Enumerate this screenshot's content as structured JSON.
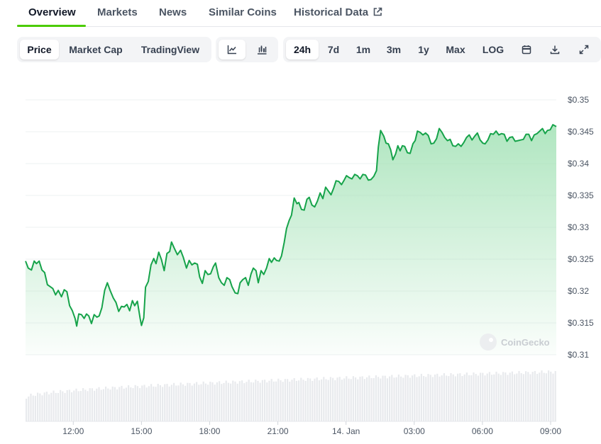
{
  "tabs": [
    {
      "label": "Overview",
      "active": true
    },
    {
      "label": "Markets"
    },
    {
      "label": "News"
    },
    {
      "label": "Similar Coins"
    },
    {
      "label": "Historical Data",
      "external": true
    }
  ],
  "chart_type_tabs": [
    {
      "label": "Price",
      "active": true
    },
    {
      "label": "Market Cap"
    },
    {
      "label": "TradingView"
    }
  ],
  "view_icons": [
    {
      "icon": "line-chart-icon",
      "active": true
    },
    {
      "icon": "candlestick-chart-icon"
    }
  ],
  "ranges": [
    {
      "label": "24h",
      "active": true
    },
    {
      "label": "7d"
    },
    {
      "label": "1m"
    },
    {
      "label": "3m"
    },
    {
      "label": "1y"
    },
    {
      "label": "Max"
    },
    {
      "label": "LOG"
    }
  ],
  "range_icons": [
    "calendar-icon",
    "download-icon",
    "fullscreen-icon"
  ],
  "watermark": "CoinGecko",
  "colors": {
    "line": "#16a34a",
    "fill_top": "#a7e3b9",
    "accent": "#4bcc00",
    "volume": "#e5e7eb"
  },
  "chart_data": {
    "type": "area",
    "title": "",
    "xlabel": "",
    "ylabel": "",
    "ylim": [
      0.31,
      0.35
    ],
    "yticks": [
      0.35,
      0.345,
      0.34,
      0.335,
      0.33,
      0.325,
      0.32,
      0.315,
      0.31
    ],
    "ytick_labels": [
      "$0.35",
      "$0.345",
      "$0.34",
      "$0.335",
      "$0.33",
      "$0.325",
      "$0.32",
      "$0.315",
      "$0.31"
    ],
    "xlim": [
      9.9,
      33.25
    ],
    "xticks": [
      12,
      15,
      18,
      21,
      24,
      27,
      30,
      33
    ],
    "xtick_labels": [
      "12:00",
      "15:00",
      "18:00",
      "21:00",
      "14. Jan",
      "03:00",
      "06:00",
      "09:00"
    ],
    "grid": true,
    "series": [
      {
        "values": [
          [
            9.9,
            0.3247
          ],
          [
            10.02,
            0.3236
          ],
          [
            10.16,
            0.3233
          ],
          [
            10.28,
            0.3247
          ],
          [
            10.38,
            0.3243
          ],
          [
            10.5,
            0.3247
          ],
          [
            10.62,
            0.3233
          ],
          [
            10.74,
            0.3229
          ],
          [
            10.86,
            0.321
          ],
          [
            10.98,
            0.3207
          ],
          [
            11.1,
            0.3204
          ],
          [
            11.22,
            0.3194
          ],
          [
            11.34,
            0.3201
          ],
          [
            11.48,
            0.3191
          ],
          [
            11.6,
            0.3202
          ],
          [
            11.72,
            0.3199
          ],
          [
            11.84,
            0.3177
          ],
          [
            11.96,
            0.3169
          ],
          [
            12.08,
            0.3157
          ],
          [
            12.15,
            0.3145
          ],
          [
            12.24,
            0.3164
          ],
          [
            12.36,
            0.3163
          ],
          [
            12.48,
            0.3157
          ],
          [
            12.58,
            0.3164
          ],
          [
            12.68,
            0.3161
          ],
          [
            12.8,
            0.3149
          ],
          [
            12.92,
            0.3163
          ],
          [
            13.04,
            0.3159
          ],
          [
            13.14,
            0.3161
          ],
          [
            13.26,
            0.3174
          ],
          [
            13.38,
            0.3201
          ],
          [
            13.5,
            0.3213
          ],
          [
            13.62,
            0.3201
          ],
          [
            13.76,
            0.3189
          ],
          [
            13.88,
            0.3182
          ],
          [
            14.0,
            0.3168
          ],
          [
            14.12,
            0.3176
          ],
          [
            14.24,
            0.3175
          ],
          [
            14.36,
            0.3179
          ],
          [
            14.48,
            0.3169
          ],
          [
            14.6,
            0.3185
          ],
          [
            14.7,
            0.3177
          ],
          [
            14.82,
            0.3184
          ],
          [
            14.94,
            0.3157
          ],
          [
            15.0,
            0.3146
          ],
          [
            15.1,
            0.3158
          ],
          [
            15.18,
            0.3206
          ],
          [
            15.3,
            0.3215
          ],
          [
            15.42,
            0.3241
          ],
          [
            15.54,
            0.3251
          ],
          [
            15.64,
            0.3243
          ],
          [
            15.76,
            0.3261
          ],
          [
            15.88,
            0.3249
          ],
          [
            16.0,
            0.3232
          ],
          [
            16.12,
            0.3259
          ],
          [
            16.24,
            0.3262
          ],
          [
            16.32,
            0.3277
          ],
          [
            16.46,
            0.3266
          ],
          [
            16.58,
            0.3257
          ],
          [
            16.72,
            0.3264
          ],
          [
            16.84,
            0.3253
          ],
          [
            16.98,
            0.3236
          ],
          [
            17.1,
            0.3248
          ],
          [
            17.22,
            0.3241
          ],
          [
            17.34,
            0.3244
          ],
          [
            17.46,
            0.3242
          ],
          [
            17.56,
            0.3222
          ],
          [
            17.68,
            0.3212
          ],
          [
            17.8,
            0.3232
          ],
          [
            17.92,
            0.3226
          ],
          [
            18.04,
            0.3227
          ],
          [
            18.16,
            0.3238
          ],
          [
            18.26,
            0.3244
          ],
          [
            18.4,
            0.3221
          ],
          [
            18.52,
            0.3213
          ],
          [
            18.64,
            0.3209
          ],
          [
            18.76,
            0.3221
          ],
          [
            18.88,
            0.3218
          ],
          [
            18.98,
            0.3207
          ],
          [
            19.12,
            0.3197
          ],
          [
            19.24,
            0.3196
          ],
          [
            19.34,
            0.3213
          ],
          [
            19.46,
            0.3218
          ],
          [
            19.58,
            0.3221
          ],
          [
            19.7,
            0.3209
          ],
          [
            19.82,
            0.3227
          ],
          [
            19.92,
            0.3236
          ],
          [
            20.04,
            0.3232
          ],
          [
            20.14,
            0.3213
          ],
          [
            20.26,
            0.3232
          ],
          [
            20.38,
            0.3226
          ],
          [
            20.5,
            0.3236
          ],
          [
            20.62,
            0.3251
          ],
          [
            20.72,
            0.3245
          ],
          [
            20.84,
            0.3252
          ],
          [
            20.94,
            0.3248
          ],
          [
            21.06,
            0.3247
          ],
          [
            21.16,
            0.3255
          ],
          [
            21.28,
            0.3276
          ],
          [
            21.38,
            0.3298
          ],
          [
            21.5,
            0.3311
          ],
          [
            21.6,
            0.3319
          ],
          [
            21.72,
            0.3346
          ],
          [
            21.84,
            0.3337
          ],
          [
            21.92,
            0.3339
          ],
          [
            22.04,
            0.3328
          ],
          [
            22.16,
            0.3327
          ],
          [
            22.28,
            0.3344
          ],
          [
            22.38,
            0.3347
          ],
          [
            22.5,
            0.3335
          ],
          [
            22.62,
            0.3332
          ],
          [
            22.74,
            0.3341
          ],
          [
            22.86,
            0.3354
          ],
          [
            22.98,
            0.3345
          ],
          [
            23.1,
            0.3363
          ],
          [
            23.22,
            0.3357
          ],
          [
            23.34,
            0.3351
          ],
          [
            23.46,
            0.3362
          ],
          [
            23.56,
            0.3373
          ],
          [
            23.68,
            0.3372
          ],
          [
            23.8,
            0.3367
          ],
          [
            23.9,
            0.3373
          ],
          [
            24.02,
            0.3381
          ],
          [
            24.14,
            0.3378
          ],
          [
            24.26,
            0.3376
          ],
          [
            24.38,
            0.3383
          ],
          [
            24.5,
            0.3381
          ],
          [
            24.62,
            0.3376
          ],
          [
            24.74,
            0.3383
          ],
          [
            24.86,
            0.3382
          ],
          [
            24.98,
            0.3374
          ],
          [
            25.1,
            0.3375
          ],
          [
            25.22,
            0.338
          ],
          [
            25.34,
            0.3389
          ],
          [
            25.42,
            0.3426
          ],
          [
            25.52,
            0.3452
          ],
          [
            25.66,
            0.3443
          ],
          [
            25.76,
            0.3432
          ],
          [
            25.86,
            0.3431
          ],
          [
            25.96,
            0.3422
          ],
          [
            26.06,
            0.3406
          ],
          [
            26.18,
            0.3415
          ],
          [
            26.28,
            0.3428
          ],
          [
            26.38,
            0.342
          ],
          [
            26.48,
            0.3428
          ],
          [
            26.58,
            0.3427
          ],
          [
            26.7,
            0.3417
          ],
          [
            26.82,
            0.3416
          ],
          [
            26.94,
            0.3431
          ],
          [
            27.04,
            0.3436
          ],
          [
            27.14,
            0.3451
          ],
          [
            27.26,
            0.3449
          ],
          [
            27.38,
            0.3445
          ],
          [
            27.5,
            0.3448
          ],
          [
            27.62,
            0.3444
          ],
          [
            27.74,
            0.3431
          ],
          [
            27.86,
            0.3432
          ],
          [
            27.98,
            0.3439
          ],
          [
            28.1,
            0.3455
          ],
          [
            28.22,
            0.3449
          ],
          [
            28.34,
            0.3441
          ],
          [
            28.46,
            0.3436
          ],
          [
            28.58,
            0.3438
          ],
          [
            28.7,
            0.3428
          ],
          [
            28.82,
            0.3427
          ],
          [
            28.94,
            0.3431
          ],
          [
            29.06,
            0.3427
          ],
          [
            29.18,
            0.3433
          ],
          [
            29.3,
            0.3441
          ],
          [
            29.42,
            0.3445
          ],
          [
            29.54,
            0.3437
          ],
          [
            29.66,
            0.3443
          ],
          [
            29.78,
            0.3448
          ],
          [
            29.9,
            0.3437
          ],
          [
            30.02,
            0.3432
          ],
          [
            30.12,
            0.3431
          ],
          [
            30.24,
            0.3437
          ],
          [
            30.36,
            0.3447
          ],
          [
            30.48,
            0.3446
          ],
          [
            30.6,
            0.3451
          ],
          [
            30.72,
            0.3445
          ],
          [
            30.84,
            0.3447
          ],
          [
            30.96,
            0.3446
          ],
          [
            31.08,
            0.3435
          ],
          [
            31.2,
            0.3441
          ],
          [
            31.32,
            0.3442
          ],
          [
            31.44,
            0.3435
          ],
          [
            31.56,
            0.3436
          ],
          [
            31.68,
            0.3437
          ],
          [
            31.8,
            0.3438
          ],
          [
            31.92,
            0.3446
          ],
          [
            32.04,
            0.3446
          ],
          [
            32.16,
            0.3436
          ],
          [
            32.28,
            0.3445
          ],
          [
            32.4,
            0.3447
          ],
          [
            32.52,
            0.3451
          ],
          [
            32.64,
            0.3455
          ],
          [
            32.76,
            0.3447
          ],
          [
            32.86,
            0.3452
          ],
          [
            32.98,
            0.3453
          ],
          [
            33.1,
            0.3461
          ],
          [
            33.25,
            0.3458
          ]
        ]
      }
    ]
  }
}
